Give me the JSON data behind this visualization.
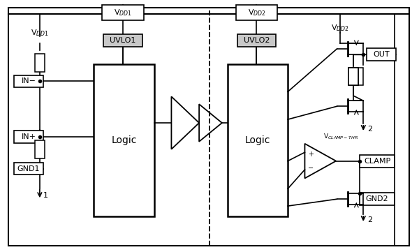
{
  "bg_color": "#ffffff",
  "figsize": [
    6.0,
    3.61
  ],
  "dpi": 100,
  "uvlo_fill": "#c8c8c8",
  "vdd1_top": "V$_{DD1}$",
  "vdd2_top": "V$_{DD2}$",
  "uvlo1": "UVLO1",
  "uvlo2": "UVLO2",
  "logic1": "Logic",
  "logic2": "Logic",
  "vdd1_side": "V$_{DD1}$",
  "vdd2_side": "V$_{DD2}$",
  "vclamp": "V$_{CLAMP-THR}$",
  "in_minus": "IN−",
  "in_plus": "IN+",
  "gnd1": "GND1",
  "out": "OUT",
  "clamp": "CLAMP",
  "gnd2": "GND2",
  "label1": "1",
  "label2a": "2",
  "label2b": "2"
}
